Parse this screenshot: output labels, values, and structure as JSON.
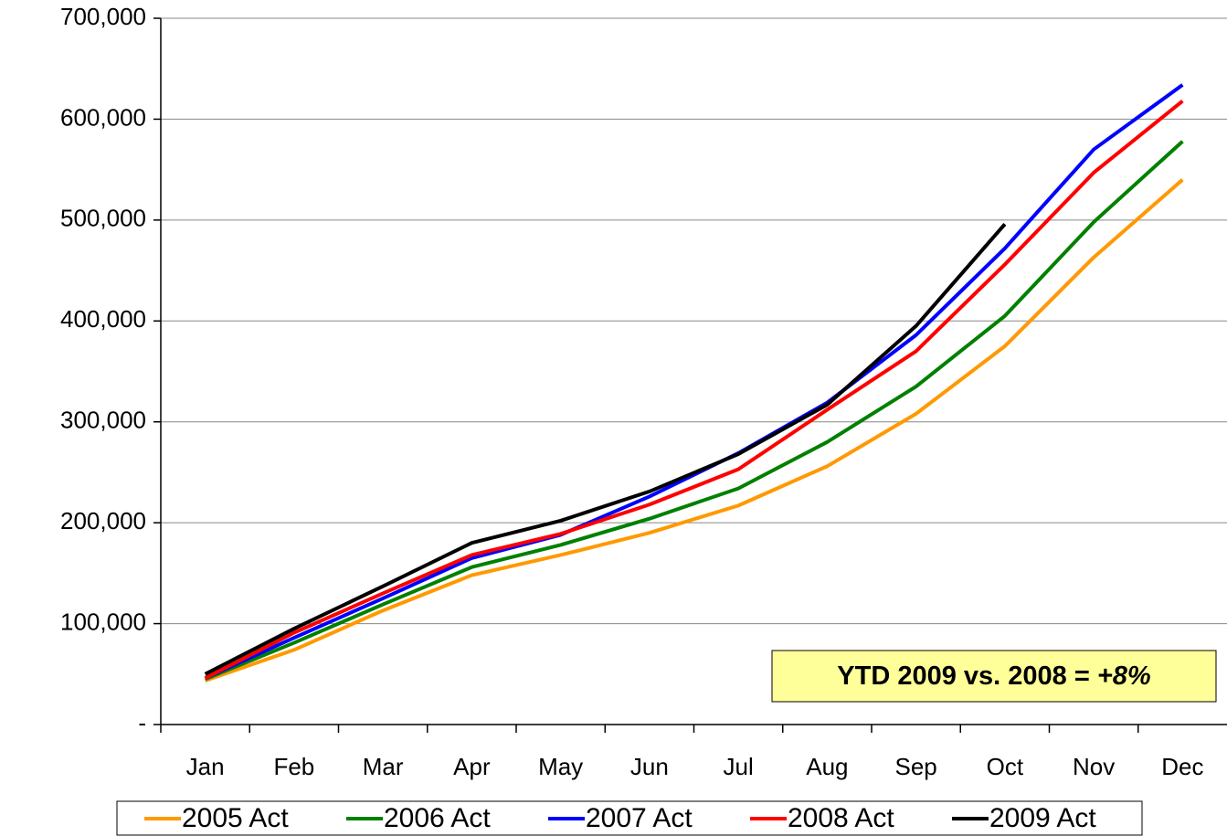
{
  "chart_data": {
    "type": "line",
    "categories": [
      "Jan",
      "Feb",
      "Mar",
      "Apr",
      "May",
      "Jun",
      "Jul",
      "Aug",
      "Sep",
      "Oct",
      "Nov",
      "Dec"
    ],
    "series": [
      {
        "name": "2005 Act",
        "color": "#ff9900",
        "values": [
          43500,
          74000,
          113000,
          148000,
          168000,
          190000,
          217000,
          256000,
          308000,
          375000,
          463000,
          540000
        ]
      },
      {
        "name": "2006 Act",
        "color": "#008000",
        "values": [
          45000,
          81000,
          119000,
          156000,
          178000,
          204000,
          234000,
          280000,
          335000,
          405000,
          498000,
          578000
        ]
      },
      {
        "name": "2007 Act",
        "color": "#0000ff",
        "values": [
          46000,
          86000,
          125000,
          165000,
          188000,
          226000,
          269000,
          319000,
          386000,
          472000,
          570000,
          634000
        ]
      },
      {
        "name": "2008 Act",
        "color": "#ff0000",
        "values": [
          46000,
          91000,
          130000,
          168000,
          189000,
          218000,
          253000,
          312000,
          370000,
          456000,
          547000,
          618000
        ]
      },
      {
        "name": "2009 Act",
        "color": "#000000",
        "values": [
          50000,
          95000,
          137000,
          180000,
          202000,
          231000,
          268000,
          317000,
          395000,
          496000,
          null,
          null
        ]
      }
    ],
    "ylim": [
      0,
      700000
    ],
    "yticks": [
      {
        "value": 0,
        "label": "-"
      },
      {
        "value": 100000,
        "label": "100,000"
      },
      {
        "value": 200000,
        "label": "200,000"
      },
      {
        "value": 300000,
        "label": "300,000"
      },
      {
        "value": 400000,
        "label": "400,000"
      },
      {
        "value": 500000,
        "label": "500,000"
      },
      {
        "value": 600000,
        "label": "600,000"
      },
      {
        "value": 700000,
        "label": "700,000"
      }
    ],
    "grid": true,
    "annotation": {
      "text": "YTD 2009 vs. 2008 = ",
      "emphasis": "+8%"
    }
  }
}
